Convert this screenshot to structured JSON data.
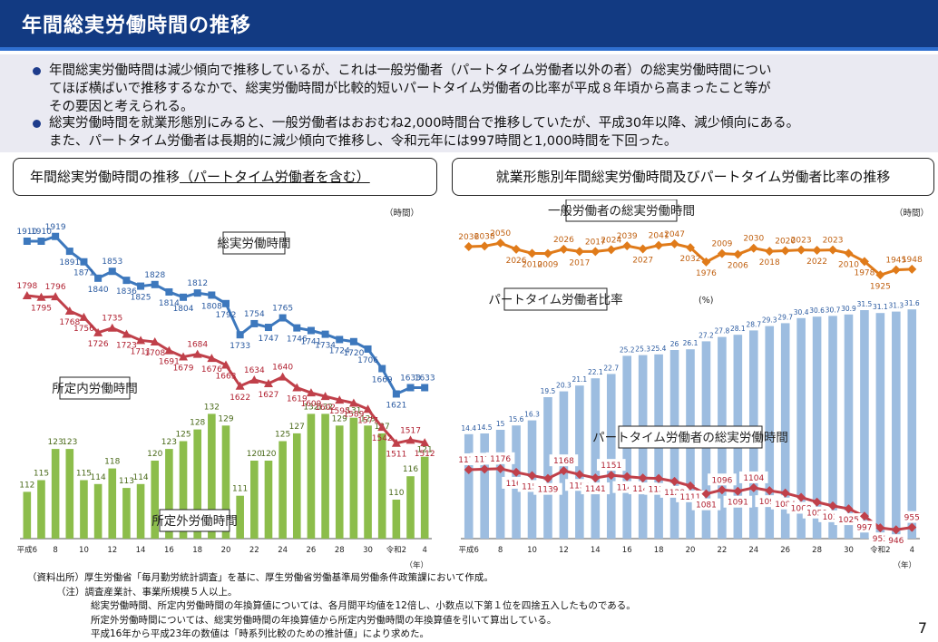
{
  "header": {
    "title": "年間総実労働時間の推移"
  },
  "summary": {
    "bullet1": "年間総実労働時間は減少傾向で推移しているが、これは一般労働者（パートタイム労働者以外の者）の総実労働時間につい\nてほぼ横ばいで推移するなかで、総実労働時間が比較的短いパートタイム労働者の比率が平成８年頃から高まったこと等が\nその要因と考えられる。",
    "bullet2": "総実労働時間を就業形態別にみると、一般労働者はおおむね2,000時間台で推移していたが、平成30年以降、減少傾向にある。\nまた、パートタイム労働者は長期的に減少傾向で推移し、令和元年には997時間と1,000時間を下回った。"
  },
  "left_panel": {
    "title_main": "年間総実労働時間の推移",
    "title_sub": "（パートタイム労働者を含む）"
  },
  "right_panel": {
    "title": "就業形態別年間総実労働時間及びパートタイム労働者比率の推移"
  },
  "chart_data": [
    {
      "type": "line",
      "unit_label": "（時間）",
      "x_tick_labels": [
        "平成6",
        "8",
        "10",
        "12",
        "14",
        "16",
        "18",
        "20",
        "22",
        "24",
        "26",
        "28",
        "30",
        "令和2",
        "4"
      ],
      "x_axis_unit": "（年）",
      "series": [
        {
          "name": "総実労働時間",
          "color": "#3d78bd",
          "values": [
            1910,
            1910,
            1919,
            1891,
            1871,
            1840,
            1853,
            1836,
            1825,
            1828,
            1814,
            1804,
            1812,
            1808,
            1792,
            1733,
            1754,
            1747,
            1765,
            1746,
            1741,
            1734,
            1724,
            1720,
            1706,
            1669,
            1621,
            1633,
            1633
          ]
        },
        {
          "name": "所定内労働時間",
          "color": "#c0404a",
          "values": [
            1798,
            1795,
            1796,
            1768,
            1756,
            1726,
            1735,
            1723,
            1711,
            1708,
            1691,
            1679,
            1684,
            1676,
            1663,
            1622,
            1634,
            1627,
            1640,
            1619,
            1609,
            1602,
            1595,
            1589,
            1577,
            1542,
            1511,
            1517,
            1512
          ]
        }
      ],
      "bars": {
        "name": "所定外労働時間",
        "color": "#8cbd4b",
        "values": [
          112,
          115,
          123,
          123,
          115,
          114,
          118,
          113,
          114,
          120,
          123,
          125,
          128,
          132,
          129,
          111,
          120,
          120,
          125,
          127,
          132,
          132,
          129,
          131,
          129,
          127,
          110,
          116,
          121
        ]
      }
    },
    {
      "type": "line",
      "unit_label": "（時間）",
      "x_tick_labels": [
        "平成6",
        "8",
        "10",
        "12",
        "14",
        "16",
        "18",
        "20",
        "22",
        "24",
        "26",
        "28",
        "30",
        "令和2",
        "4"
      ],
      "x_axis_unit": "（年）",
      "series": [
        {
          "name": "一般労働者の総実労働時間",
          "color": "#e07b1a",
          "values": [
            2036,
            2038,
            2050,
            2026,
            2010,
            2009,
            2026,
            2017,
            2017,
            2024,
            2039,
            2027,
            2041,
            2047,
            2032,
            1976,
            2009,
            2006,
            2030,
            2018,
            2020,
            2023,
            2022,
            2023,
            2010,
            1978,
            1925,
            1945,
            1948
          ]
        },
        {
          "name": "パートタイム労働者の総実労働時間",
          "color": "#c0404a",
          "values": [
            1172,
            1174,
            1176,
            1162,
            1150,
            1139,
            1168,
            1154,
            1141,
            1151,
            1146,
            1141,
            1139,
            1128,
            1111,
            1081,
            1096,
            1091,
            1104,
            1093,
            1084,
            1068,
            1050,
            1036,
            1025,
            997,
            953,
            946,
            955
          ]
        }
      ],
      "bars": {
        "name": "パートタイム労働者比率",
        "unit": "(%)",
        "color": "#9dbde0",
        "values": [
          14.4,
          14.5,
          15.0,
          15.6,
          16.3,
          19.5,
          20.3,
          21.1,
          22.1,
          22.7,
          25.2,
          25.3,
          25.4,
          26.0,
          26.1,
          27.2,
          27.8,
          28.1,
          28.7,
          29.3,
          29.7,
          30.4,
          30.6,
          30.7,
          30.9,
          31.5,
          31.1,
          31.3,
          31.6
        ]
      }
    }
  ],
  "footer": {
    "source_label": "（資料出所）",
    "source": "厚生労働省「毎月勤労統計調査」を基に、厚生労働省労働基準局労働条件政策課において作成。",
    "note_label": "（注）",
    "note1": "調査産業計、事業所規模５人以上。",
    "note2": "総実労働時間、所定内労働時間の年換算値については、各月間平均値を12倍し、小数点以下第１位を四捨五入したものである。",
    "note3": "所定外労働時間については、総実労働時間の年換算値から所定内労働時間の年換算値を引いて算出している。",
    "note4": "平成16年から平成23年の数値は「時系列比較のための推計値」により求めた。"
  },
  "page_number": "7"
}
